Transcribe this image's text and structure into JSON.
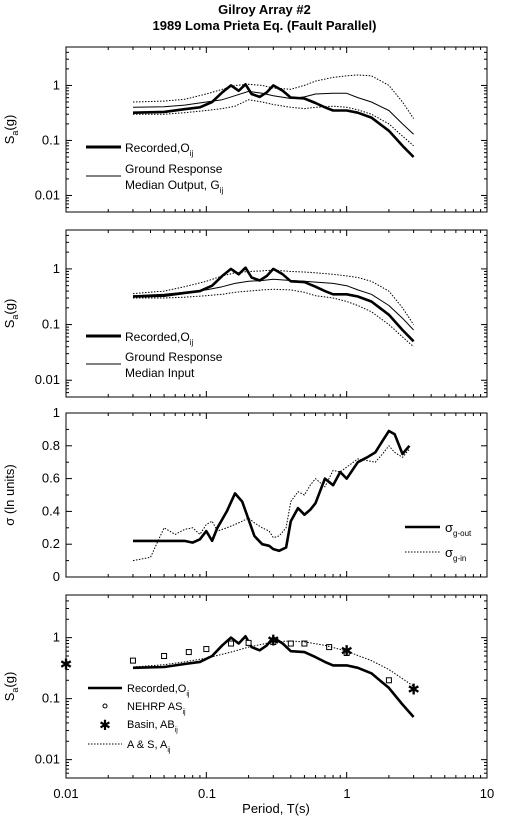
{
  "figure": {
    "title_line1": "Gilroy Array #2",
    "title_line2": "1989 Loma Prieta Eq. (Fault Parallel)",
    "xlabel": "Period, T(s)",
    "x_ticks": [
      "0.01",
      "0.1",
      "1",
      "10"
    ]
  },
  "chart_data": [
    {
      "type": "line",
      "xscale": "log",
      "yscale": "log",
      "xlim": [
        0.01,
        10
      ],
      "ylim": [
        0.005,
        5
      ],
      "ylabel": "Sa(g)",
      "yticks": [
        0.01,
        0.1,
        1
      ],
      "ytick_labels": [
        "0.01",
        "0.1",
        "1"
      ],
      "legend_position": "bottom-left",
      "series": [
        {
          "name": "Recorded,Oij",
          "style": "thick",
          "x": [
            0.03,
            0.05,
            0.07,
            0.09,
            0.11,
            0.13,
            0.15,
            0.17,
            0.19,
            0.21,
            0.24,
            0.27,
            0.3,
            0.35,
            0.4,
            0.5,
            0.6,
            0.7,
            0.8,
            1,
            1.2,
            1.5,
            2,
            2.5,
            3
          ],
          "y": [
            0.32,
            0.33,
            0.37,
            0.4,
            0.5,
            0.75,
            1.0,
            0.8,
            1.05,
            0.7,
            0.62,
            0.75,
            1.0,
            0.8,
            0.6,
            0.58,
            0.48,
            0.4,
            0.35,
            0.35,
            0.32,
            0.26,
            0.15,
            0.08,
            0.05
          ]
        },
        {
          "name": "Ground Response Median Output, Gij",
          "style": "thin",
          "x": [
            0.03,
            0.05,
            0.07,
            0.1,
            0.13,
            0.16,
            0.2,
            0.25,
            0.3,
            0.4,
            0.5,
            0.6,
            0.8,
            1,
            1.2,
            1.5,
            2,
            2.5,
            3
          ],
          "y": [
            0.4,
            0.41,
            0.44,
            0.5,
            0.55,
            0.65,
            0.78,
            0.72,
            0.65,
            0.58,
            0.62,
            0.7,
            0.72,
            0.72,
            0.6,
            0.5,
            0.35,
            0.2,
            0.13
          ]
        },
        {
          "name": "Ground Response +1 sigma",
          "style": "dotted",
          "x": [
            0.03,
            0.05,
            0.07,
            0.1,
            0.13,
            0.16,
            0.2,
            0.25,
            0.3,
            0.4,
            0.5,
            0.6,
            0.8,
            1,
            1.2,
            1.5,
            2,
            2.5,
            3
          ],
          "y": [
            0.5,
            0.52,
            0.56,
            0.7,
            0.85,
            1.0,
            1.05,
            1.0,
            0.9,
            0.85,
            1.0,
            1.2,
            1.4,
            1.5,
            1.55,
            1.5,
            1.0,
            0.5,
            0.25
          ]
        },
        {
          "name": "Ground Response -1 sigma",
          "style": "dotted",
          "x": [
            0.03,
            0.05,
            0.07,
            0.1,
            0.13,
            0.16,
            0.2,
            0.25,
            0.3,
            0.4,
            0.5,
            0.6,
            0.8,
            1,
            1.2,
            1.5,
            2,
            2.5,
            3
          ],
          "y": [
            0.3,
            0.3,
            0.32,
            0.35,
            0.38,
            0.42,
            0.55,
            0.5,
            0.45,
            0.4,
            0.38,
            0.4,
            0.42,
            0.4,
            0.36,
            0.3,
            0.2,
            0.12,
            0.08
          ]
        }
      ],
      "legend": {
        "recorded": "Recorded,O",
        "recorded_sub": "ij",
        "gr_line1": "Ground Response",
        "gr_line2": "Median Output, G",
        "gr_sub": "ij"
      }
    },
    {
      "type": "line",
      "xscale": "log",
      "yscale": "log",
      "xlim": [
        0.01,
        10
      ],
      "ylim": [
        0.005,
        5
      ],
      "ylabel": "Sa(g)",
      "yticks": [
        0.01,
        0.1,
        1
      ],
      "ytick_labels": [
        "0.01",
        "0.1",
        "1"
      ],
      "legend_position": "bottom-left",
      "series": [
        {
          "name": "Recorded,Oij",
          "style": "thick",
          "x": [
            0.03,
            0.05,
            0.07,
            0.09,
            0.11,
            0.13,
            0.15,
            0.17,
            0.19,
            0.21,
            0.24,
            0.27,
            0.3,
            0.35,
            0.4,
            0.5,
            0.6,
            0.7,
            0.8,
            1,
            1.2,
            1.5,
            2,
            2.5,
            3
          ],
          "y": [
            0.32,
            0.33,
            0.37,
            0.4,
            0.5,
            0.75,
            1.0,
            0.8,
            1.05,
            0.7,
            0.62,
            0.75,
            1.0,
            0.8,
            0.6,
            0.58,
            0.48,
            0.4,
            0.35,
            0.35,
            0.32,
            0.26,
            0.15,
            0.08,
            0.05
          ]
        },
        {
          "name": "Ground Response Median Input",
          "style": "thin",
          "x": [
            0.03,
            0.05,
            0.07,
            0.1,
            0.13,
            0.16,
            0.2,
            0.25,
            0.3,
            0.4,
            0.5,
            0.6,
            0.8,
            1,
            1.2,
            1.5,
            2,
            2.5,
            3
          ],
          "y": [
            0.33,
            0.35,
            0.38,
            0.42,
            0.48,
            0.55,
            0.6,
            0.62,
            0.65,
            0.62,
            0.6,
            0.58,
            0.55,
            0.5,
            0.42,
            0.35,
            0.22,
            0.13,
            0.08
          ]
        },
        {
          "name": "Input +1 sigma",
          "style": "dotted",
          "x": [
            0.03,
            0.05,
            0.07,
            0.1,
            0.13,
            0.16,
            0.2,
            0.25,
            0.3,
            0.4,
            0.5,
            0.6,
            0.8,
            1,
            1.2,
            1.5,
            2,
            2.5,
            3
          ],
          "y": [
            0.36,
            0.4,
            0.48,
            0.6,
            0.75,
            0.85,
            0.9,
            0.92,
            0.95,
            0.9,
            0.88,
            0.85,
            0.8,
            0.75,
            0.7,
            0.6,
            0.4,
            0.2,
            0.1
          ]
        },
        {
          "name": "Input -1 sigma",
          "style": "dotted",
          "x": [
            0.03,
            0.05,
            0.07,
            0.1,
            0.13,
            0.16,
            0.2,
            0.25,
            0.3,
            0.4,
            0.5,
            0.6,
            0.8,
            1,
            1.2,
            1.5,
            2,
            2.5,
            3
          ],
          "y": [
            0.3,
            0.3,
            0.31,
            0.33,
            0.35,
            0.38,
            0.4,
            0.42,
            0.43,
            0.42,
            0.38,
            0.33,
            0.3,
            0.26,
            0.22,
            0.17,
            0.1,
            0.06,
            0.04
          ]
        }
      ],
      "legend": {
        "recorded": "Recorded,O",
        "recorded_sub": "ij",
        "gr_line1": "Ground Response",
        "gr_line2": "Median Input"
      }
    },
    {
      "type": "line",
      "xscale": "log",
      "yscale": "linear",
      "xlim": [
        0.01,
        10
      ],
      "ylim": [
        0,
        1
      ],
      "ylabel": "σ (ln units)",
      "yticks": [
        0,
        0.2,
        0.4,
        0.6,
        0.8,
        1
      ],
      "ytick_labels": [
        "0",
        "0.2",
        "0.4",
        "0.6",
        "0.8",
        "1"
      ],
      "legend_position": "bottom-right",
      "series": [
        {
          "name": "σg-out",
          "style": "thick",
          "x": [
            0.03,
            0.05,
            0.07,
            0.08,
            0.09,
            0.1,
            0.11,
            0.12,
            0.14,
            0.16,
            0.18,
            0.2,
            0.22,
            0.25,
            0.28,
            0.3,
            0.33,
            0.37,
            0.4,
            0.45,
            0.5,
            0.55,
            0.6,
            0.7,
            0.8,
            0.9,
            1,
            1.2,
            1.4,
            1.6,
            1.8,
            2,
            2.2,
            2.5,
            2.8
          ],
          "y": [
            0.22,
            0.22,
            0.22,
            0.21,
            0.23,
            0.28,
            0.22,
            0.3,
            0.4,
            0.51,
            0.46,
            0.35,
            0.25,
            0.2,
            0.19,
            0.17,
            0.16,
            0.18,
            0.34,
            0.42,
            0.38,
            0.41,
            0.45,
            0.6,
            0.56,
            0.64,
            0.6,
            0.7,
            0.73,
            0.76,
            0.83,
            0.89,
            0.87,
            0.75,
            0.8
          ]
        },
        {
          "name": "σg-in",
          "style": "dotted",
          "x": [
            0.03,
            0.04,
            0.05,
            0.06,
            0.07,
            0.08,
            0.09,
            0.1,
            0.11,
            0.12,
            0.14,
            0.16,
            0.18,
            0.2,
            0.22,
            0.25,
            0.28,
            0.3,
            0.33,
            0.37,
            0.4,
            0.45,
            0.5,
            0.55,
            0.6,
            0.7,
            0.8,
            0.9,
            1,
            1.2,
            1.4,
            1.6,
            1.8,
            2,
            2.2,
            2.5,
            2.8
          ],
          "y": [
            0.1,
            0.12,
            0.3,
            0.26,
            0.29,
            0.3,
            0.26,
            0.32,
            0.34,
            0.28,
            0.3,
            0.32,
            0.34,
            0.36,
            0.33,
            0.3,
            0.28,
            0.24,
            0.25,
            0.3,
            0.46,
            0.52,
            0.5,
            0.56,
            0.6,
            0.55,
            0.65,
            0.64,
            0.67,
            0.72,
            0.71,
            0.7,
            0.75,
            0.8,
            0.76,
            0.73,
            0.78
          ]
        }
      ],
      "legend": {
        "out_sigma": "σ",
        "out_sub": "g-out",
        "in_sigma": "σ",
        "in_sub": "g-in"
      }
    },
    {
      "type": "line",
      "xscale": "log",
      "yscale": "log",
      "xlim": [
        0.01,
        10
      ],
      "ylim": [
        0.005,
        5
      ],
      "ylabel": "Sa(g)",
      "yticks": [
        0.01,
        0.1,
        1
      ],
      "ytick_labels": [
        "0.01",
        "0.1",
        "1"
      ],
      "legend_position": "bottom-left",
      "series": [
        {
          "name": "Recorded,Oij",
          "style": "thick",
          "x": [
            0.03,
            0.05,
            0.07,
            0.09,
            0.11,
            0.13,
            0.15,
            0.17,
            0.19,
            0.21,
            0.24,
            0.27,
            0.3,
            0.35,
            0.4,
            0.5,
            0.6,
            0.7,
            0.8,
            1,
            1.2,
            1.5,
            2,
            2.5,
            3
          ],
          "y": [
            0.32,
            0.33,
            0.37,
            0.4,
            0.5,
            0.75,
            1.0,
            0.8,
            1.05,
            0.7,
            0.62,
            0.75,
            1.0,
            0.8,
            0.6,
            0.58,
            0.48,
            0.4,
            0.35,
            0.35,
            0.32,
            0.26,
            0.15,
            0.08,
            0.05
          ]
        },
        {
          "name": "NEHRP ASij",
          "style": "square-markers",
          "x": [
            0.03,
            0.05,
            0.075,
            0.1,
            0.15,
            0.2,
            0.3,
            0.4,
            0.5,
            0.75,
            1,
            2
          ],
          "y": [
            0.42,
            0.5,
            0.58,
            0.65,
            0.8,
            0.82,
            0.85,
            0.8,
            0.8,
            0.7,
            0.56,
            0.2
          ]
        },
        {
          "name": "Basin, ABij",
          "style": "star-markers",
          "x": [
            0.01,
            0.3,
            1.0,
            3.0
          ],
          "y": [
            0.36,
            0.9,
            0.6,
            0.14
          ]
        },
        {
          "name": "A & S, Aij",
          "style": "dotted",
          "x": [
            0.03,
            0.05,
            0.07,
            0.1,
            0.15,
            0.2,
            0.3,
            0.4,
            0.5,
            0.7,
            1,
            1.5,
            2,
            3
          ],
          "y": [
            0.33,
            0.36,
            0.4,
            0.46,
            0.58,
            0.7,
            0.85,
            0.88,
            0.85,
            0.75,
            0.6,
            0.42,
            0.3,
            0.16
          ]
        }
      ],
      "legend": {
        "recorded": "Recorded,O",
        "recorded_sub": "ij",
        "nehrp": "NEHRP AS",
        "nehrp_sub": "ij",
        "basin": "Basin, AB",
        "basin_sub": "ij",
        "as": "A & S, A",
        "as_sub": "ij"
      }
    }
  ]
}
